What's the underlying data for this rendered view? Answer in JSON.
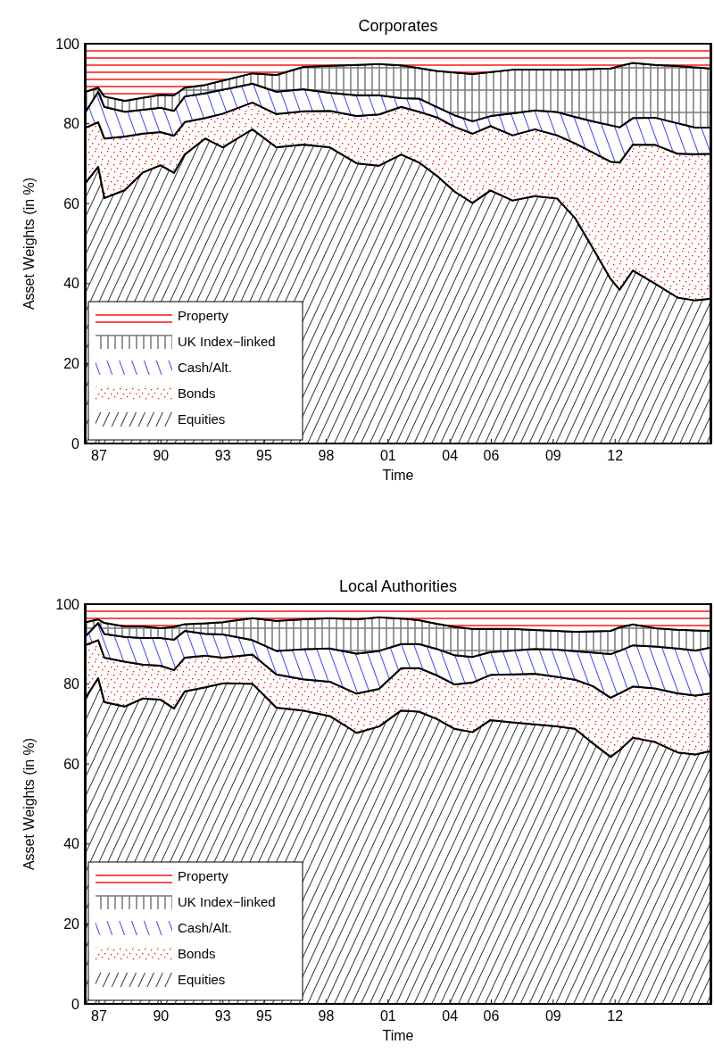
{
  "chart_data": [
    {
      "type": "area",
      "stacked": true,
      "title": "Corporates",
      "xlabel": "Time",
      "ylabel": "Asset Weights (in %)",
      "legend": "bottom left",
      "x": [
        1986.35,
        1986.96,
        1987.26,
        1988.25,
        1989.12,
        1989.98,
        1990.63,
        1991.15,
        1992.14,
        1993.0,
        1994.43,
        1995.59,
        1996.89,
        1998.18,
        1999.48,
        2000.56,
        2001.64,
        2002.5,
        2003.36,
        2004.23,
        2005.09,
        2005.96,
        2007.03,
        2008.11,
        2009.19,
        2010.06,
        2010.92,
        2011.78,
        2012.22,
        2012.86,
        2013.94,
        2015.03,
        2015.89,
        2016.62
      ],
      "xlim": [
        1986.31,
        2016.66
      ],
      "ylim": [
        0,
        100
      ],
      "xticks": [
        {
          "value": 1987,
          "label": "87"
        },
        {
          "value": 1990,
          "label": "90"
        },
        {
          "value": 1993,
          "label": "93"
        },
        {
          "value": 1995,
          "label": "95"
        },
        {
          "value": 1998,
          "label": "98"
        },
        {
          "value": 2001,
          "label": "01"
        },
        {
          "value": 2004,
          "label": "04"
        },
        {
          "value": 2006,
          "label": "06"
        },
        {
          "value": 2009,
          "label": "09"
        },
        {
          "value": 2012,
          "label": "12"
        }
      ],
      "yticks": [
        0,
        20,
        40,
        60,
        80,
        100
      ],
      "series": [
        {
          "name": "Equities",
          "color": "#000000",
          "values": [
            65.2,
            69.2,
            61.4,
            63.4,
            67.8,
            69.6,
            67.7,
            72.3,
            76.3,
            74.1,
            78.6,
            74.1,
            74.8,
            74.1,
            70.1,
            69.5,
            72.3,
            70.3,
            67.0,
            63.0,
            60.2,
            63.3,
            60.8,
            61.9,
            61.3,
            56.4,
            48.9,
            41.2,
            38.5,
            43.3,
            40.0,
            36.5,
            35.8,
            36.2
          ]
        },
        {
          "name": "Bonds",
          "color": "#ff0000",
          "values": [
            13.8,
            11.2,
            14.9,
            13.4,
            9.7,
            8.3,
            9.3,
            8.1,
            5.1,
            8.4,
            6.7,
            8.3,
            8.3,
            9.1,
            11.8,
            12.8,
            11.9,
            12.7,
            14.6,
            16.2,
            17.3,
            16.1,
            16.3,
            16.7,
            15.8,
            18.7,
            23.9,
            29.3,
            31.8,
            31.5,
            34.7,
            36.0,
            36.6,
            36.3
          ]
        },
        {
          "name": "Cash/Alt.",
          "color": "#0000ff",
          "values": [
            4.0,
            7.6,
            7.9,
            6.2,
            6.0,
            6.1,
            6.2,
            6.4,
            6.2,
            6.0,
            4.7,
            5.6,
            5.5,
            4.5,
            5.2,
            4.8,
            2.2,
            3.3,
            2.6,
            2.9,
            3.1,
            2.5,
            5.5,
            4.7,
            5.8,
            6.6,
            7.8,
            9.1,
            8.8,
            6.6,
            6.8,
            7.6,
            6.6,
            6.5
          ]
        },
        {
          "name": "UK Index−linked",
          "color": "#808080",
          "values": [
            5.0,
            1.0,
            2.6,
            2.7,
            3.0,
            3.2,
            3.9,
            2.2,
            2.1,
            2.3,
            2.6,
            4.2,
            5.6,
            6.8,
            7.6,
            7.8,
            8.2,
            7.6,
            9.0,
            10.7,
            11.8,
            11.0,
            10.9,
            10.2,
            10.6,
            11.8,
            13.1,
            14.2,
            15.3,
            13.8,
            13.2,
            14.3,
            15.1,
            14.8
          ]
        },
        {
          "name": "Property",
          "color": "#ff0000",
          "values": [
            12.0,
            11.0,
            13.2,
            14.3,
            13.5,
            12.8,
            12.9,
            11.0,
            10.3,
            9.2,
            7.4,
            7.8,
            5.8,
            5.5,
            5.3,
            5.1,
            5.4,
            6.1,
            6.8,
            7.2,
            7.6,
            7.1,
            6.5,
            6.5,
            6.5,
            6.5,
            6.3,
            6.2,
            5.6,
            4.8,
            5.3,
            5.6,
            5.9,
            6.2
          ]
        }
      ]
    },
    {
      "type": "area",
      "stacked": true,
      "title": "Local Authorities",
      "xlabel": "Time",
      "ylabel": "Asset Weights (in %)",
      "legend": "bottom left",
      "x": [
        1986.35,
        1986.96,
        1987.26,
        1988.25,
        1989.12,
        1989.98,
        1990.63,
        1991.15,
        1992.14,
        1993.0,
        1994.43,
        1995.59,
        1996.89,
        1998.18,
        1999.48,
        2000.56,
        2001.64,
        2002.5,
        2003.36,
        2004.23,
        2005.09,
        2005.96,
        2007.03,
        2008.11,
        2009.19,
        2010.06,
        2010.92,
        2011.78,
        2012.22,
        2012.86,
        2013.94,
        2015.03,
        2015.89,
        2016.62
      ],
      "xlim": [
        1986.31,
        2016.66
      ],
      "ylim": [
        0,
        100
      ],
      "xticks": [
        {
          "value": 1987,
          "label": "87"
        },
        {
          "value": 1990,
          "label": "90"
        },
        {
          "value": 1993,
          "label": "93"
        },
        {
          "value": 1995,
          "label": "95"
        },
        {
          "value": 1998,
          "label": "98"
        },
        {
          "value": 2001,
          "label": "01"
        },
        {
          "value": 2004,
          "label": "04"
        },
        {
          "value": 2006,
          "label": "06"
        },
        {
          "value": 2009,
          "label": "09"
        },
        {
          "value": 2012,
          "label": "12"
        }
      ],
      "yticks": [
        0,
        20,
        40,
        60,
        80,
        100
      ],
      "series": [
        {
          "name": "Equities",
          "color": "#000000",
          "values": [
            76.6,
            81.5,
            75.5,
            74.4,
            76.4,
            76.1,
            73.9,
            78.2,
            79.2,
            80.2,
            80.1,
            74.1,
            73.4,
            72.0,
            67.8,
            69.4,
            73.4,
            73.1,
            71.3,
            68.8,
            68.0,
            71.0,
            70.4,
            69.9,
            69.4,
            68.8,
            65.2,
            61.8,
            63.5,
            66.6,
            65.5,
            62.9,
            62.4,
            63.3
          ]
        },
        {
          "name": "Bonds",
          "color": "#ff0000",
          "values": [
            13.2,
            9.5,
            11.1,
            11.2,
            8.5,
            8.5,
            9.6,
            8.4,
            7.9,
            6.4,
            7.3,
            8.3,
            7.8,
            8.6,
            9.8,
            9.4,
            10.6,
            10.9,
            10.9,
            11.1,
            12.4,
            11.3,
            12.0,
            12.7,
            12.4,
            12.3,
            14.3,
            14.8,
            14.2,
            12.8,
            13.4,
            14.8,
            14.7,
            14.4
          ]
        },
        {
          "name": "Cash/Alt.",
          "color": "#0000ff",
          "values": [
            2.2,
            4.3,
            5.9,
            6.2,
            6.6,
            6.9,
            7.6,
            6.7,
            5.5,
            5.8,
            3.6,
            5.9,
            7.5,
            8.3,
            10.0,
            9.5,
            6.0,
            6.0,
            6.6,
            7.3,
            6.4,
            5.7,
            6.0,
            6.2,
            6.8,
            7.1,
            8.4,
            10.9,
            10.6,
            10.3,
            10.5,
            11.2,
            11.3,
            11.4
          ]
        },
        {
          "name": "UK Index−linked",
          "color": "#808080",
          "values": [
            3.5,
            0.9,
            2.8,
            2.6,
            2.9,
            2.5,
            3.2,
            1.7,
            2.6,
            3.1,
            5.5,
            7.5,
            7.5,
            7.6,
            8.6,
            8.4,
            6.4,
            6.0,
            6.3,
            7.1,
            7.0,
            5.8,
            5.4,
            4.7,
            4.7,
            4.9,
            5.3,
            5.8,
            5.9,
            5.2,
            4.6,
            4.7,
            5.0,
            4.2
          ]
        },
        {
          "name": "Property",
          "color": "#ff0000",
          "values": [
            4.5,
            3.8,
            4.7,
            5.6,
            5.6,
            6.0,
            5.7,
            5.0,
            4.8,
            4.5,
            3.5,
            4.2,
            3.8,
            3.5,
            3.8,
            3.3,
            3.6,
            4.0,
            4.9,
            5.7,
            6.2,
            6.2,
            6.2,
            6.5,
            6.7,
            6.9,
            6.8,
            6.7,
            5.8,
            5.1,
            6.0,
            6.4,
            6.6,
            6.7
          ]
        }
      ]
    }
  ]
}
